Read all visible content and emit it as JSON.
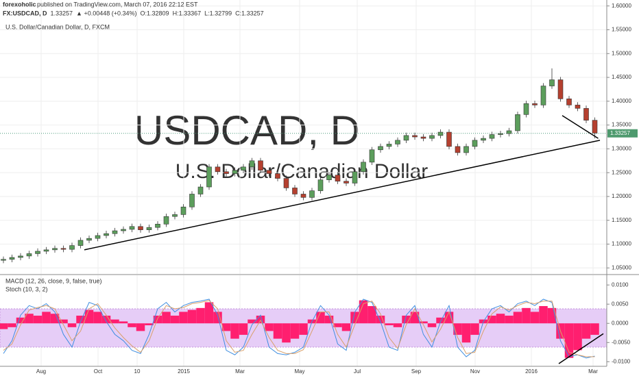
{
  "chart_data": {
    "type": "candlestick",
    "publisher": "forexoholic",
    "published": "published on TradingView.com, March 07, 2016 22:12 EST",
    "symbol_line": [
      "FX:USDCAD, D",
      "1.33257",
      "▲ +0.00448 (+0.34%)",
      "O:1.32809",
      "H:1.33367",
      "L:1.32799",
      "C:1.33257"
    ],
    "title": "U.S. Dollar/Canadian Dollar, D, FXCM",
    "watermark": [
      "USDCAD, D",
      "U.S. Dollar/Canadian Dollar"
    ],
    "up_color": "#5c9e5c",
    "down_color": "#b5402f",
    "candles": {
      "open": [
        1.066,
        1.068,
        1.072,
        1.075,
        1.08,
        1.085,
        1.088,
        1.091,
        1.089,
        1.097,
        1.108,
        1.112,
        1.118,
        1.122,
        1.128,
        1.131,
        1.137,
        1.13,
        1.135,
        1.142,
        1.158,
        1.162,
        1.178,
        1.205,
        1.22,
        1.262,
        1.252,
        1.248,
        1.255,
        1.262,
        1.275,
        1.255,
        1.248,
        1.238,
        1.218,
        1.205,
        1.198,
        1.212,
        1.235,
        1.245,
        1.232,
        1.228,
        1.252,
        1.272,
        1.298,
        1.305,
        1.31,
        1.318,
        1.328,
        1.325,
        1.322,
        1.328,
        1.335,
        1.305,
        1.292,
        1.305,
        1.318,
        1.322,
        1.33,
        1.332,
        1.338,
        1.372,
        1.395,
        1.392,
        1.432,
        1.445,
        1.405,
        1.392,
        1.385,
        1.36
      ],
      "high": [
        1.074,
        1.078,
        1.081,
        1.086,
        1.091,
        1.094,
        1.097,
        1.097,
        1.103,
        1.114,
        1.118,
        1.124,
        1.128,
        1.134,
        1.137,
        1.143,
        1.143,
        1.141,
        1.148,
        1.164,
        1.168,
        1.184,
        1.211,
        1.226,
        1.268,
        1.268,
        1.258,
        1.261,
        1.268,
        1.281,
        1.281,
        1.261,
        1.254,
        1.244,
        1.224,
        1.211,
        1.218,
        1.241,
        1.251,
        1.251,
        1.238,
        1.258,
        1.278,
        1.304,
        1.311,
        1.316,
        1.324,
        1.334,
        1.334,
        1.331,
        1.334,
        1.341,
        1.341,
        1.311,
        1.311,
        1.324,
        1.328,
        1.336,
        1.338,
        1.344,
        1.378,
        1.401,
        1.401,
        1.438,
        1.469,
        1.451,
        1.411,
        1.398,
        1.391,
        1.366
      ],
      "low": [
        1.06,
        1.062,
        1.066,
        1.069,
        1.074,
        1.079,
        1.082,
        1.083,
        1.083,
        1.091,
        1.102,
        1.106,
        1.112,
        1.116,
        1.122,
        1.125,
        1.124,
        1.124,
        1.129,
        1.136,
        1.152,
        1.156,
        1.172,
        1.199,
        1.214,
        1.246,
        1.242,
        1.242,
        1.249,
        1.256,
        1.249,
        1.242,
        1.232,
        1.212,
        1.199,
        1.192,
        1.192,
        1.206,
        1.229,
        1.226,
        1.222,
        1.222,
        1.246,
        1.266,
        1.292,
        1.299,
        1.304,
        1.312,
        1.319,
        1.316,
        1.316,
        1.322,
        1.299,
        1.286,
        1.286,
        1.299,
        1.312,
        1.316,
        1.324,
        1.326,
        1.332,
        1.366,
        1.386,
        1.386,
        1.426,
        1.399,
        1.386,
        1.379,
        1.354,
        1.322
      ],
      "close": [
        1.068,
        1.072,
        1.075,
        1.08,
        1.085,
        1.088,
        1.091,
        1.089,
        1.097,
        1.108,
        1.112,
        1.118,
        1.122,
        1.128,
        1.131,
        1.137,
        1.13,
        1.135,
        1.142,
        1.158,
        1.162,
        1.178,
        1.205,
        1.22,
        1.262,
        1.252,
        1.248,
        1.255,
        1.262,
        1.275,
        1.255,
        1.248,
        1.238,
        1.218,
        1.205,
        1.198,
        1.212,
        1.235,
        1.245,
        1.232,
        1.228,
        1.252,
        1.272,
        1.298,
        1.305,
        1.31,
        1.318,
        1.328,
        1.325,
        1.322,
        1.328,
        1.335,
        1.305,
        1.292,
        1.305,
        1.318,
        1.322,
        1.33,
        1.332,
        1.338,
        1.372,
        1.395,
        1.392,
        1.432,
        1.445,
        1.405,
        1.392,
        1.385,
        1.36,
        1.333
      ]
    },
    "last_price": {
      "value": 1.33257,
      "label": "1.33257"
    },
    "ylim": [
      1.0375,
      1.6125
    ],
    "yticks": [
      {
        "value": 1.05,
        "label": "1.05000"
      },
      {
        "value": 1.1,
        "label": "1.10000"
      },
      {
        "value": 1.15,
        "label": "1.15000"
      },
      {
        "value": 1.2,
        "label": "1.20000"
      },
      {
        "value": 1.25,
        "label": "1.25000"
      },
      {
        "value": 1.3,
        "label": "1.30000"
      },
      {
        "value": 1.35,
        "label": "1.35000"
      },
      {
        "value": 1.4,
        "label": "1.40000"
      },
      {
        "value": 1.45,
        "label": "1.45000"
      },
      {
        "value": 1.5,
        "label": "1.50000"
      },
      {
        "value": 1.55,
        "label": "1.55000"
      },
      {
        "value": 1.6,
        "label": "1.60000"
      }
    ],
    "grid": true,
    "xticks": [
      {
        "value": 4.4,
        "label": "Aug"
      },
      {
        "value": 11.04,
        "label": "Oct"
      },
      {
        "value": 15.6,
        "label": "10"
      },
      {
        "value": 21.04,
        "label": "2015"
      },
      {
        "value": 27.6,
        "label": "Mar"
      },
      {
        "value": 34.56,
        "label": "May"
      },
      {
        "value": 41.28,
        "label": "Jul"
      },
      {
        "value": 48.16,
        "label": "Sep"
      },
      {
        "value": 55.04,
        "label": "Nov"
      },
      {
        "value": 61.6,
        "label": "2016"
      },
      {
        "value": 68.8,
        "label": "Mar"
      }
    ],
    "trendlines": [
      {
        "x": [
          9.44,
          69.6
        ],
        "y": [
          1.088,
          1.318
        ]
      },
      {
        "x": [
          65.2,
          69.4
        ],
        "y": [
          1.37,
          1.322
        ]
      }
    ],
    "indicators": {
      "macd_label": "MACD (12, 26, close, 9, false, true)",
      "stoch_label": "Stoch (10, 3, 2)",
      "ylim": [
        -0.0112,
        0.012
      ],
      "yticks": [
        {
          "value": 0.01,
          "label": "0.0100"
        },
        {
          "value": 0.005,
          "label": "0.0050"
        },
        {
          "value": 0,
          "label": "0.0000"
        },
        {
          "value": -0.005,
          "label": "-0.0050"
        },
        {
          "value": -0.01,
          "label": "-0.0100"
        }
      ],
      "histogram_color": "#ff1f6f",
      "histogram": [
        -0.0015,
        -0.001,
        0.0015,
        0.0025,
        0.002,
        0.003,
        0.0025,
        0.001,
        -0.001,
        0.002,
        0.0035,
        0.003,
        0.002,
        0.001,
        0.0005,
        -0.001,
        -0.002,
        -0.0005,
        0.002,
        0.003,
        0.002,
        0.003,
        0.0035,
        0.004,
        0.0055,
        0.003,
        -0.002,
        -0.004,
        -0.003,
        0.001,
        0.002,
        -0.002,
        -0.004,
        -0.005,
        -0.004,
        -0.003,
        0.001,
        0.003,
        0.002,
        -0.001,
        -0.002,
        0.003,
        0.006,
        0.0045,
        0.002,
        -0.0005,
        -0.001,
        0.002,
        0.003,
        0.0005,
        -0.001,
        0.0015,
        0.003,
        -0.003,
        -0.005,
        -0.003,
        0.001,
        0.002,
        0.0025,
        0.002,
        0.003,
        0.004,
        0.003,
        0.0045,
        0.004,
        -0.004,
        -0.009,
        -0.007,
        -0.004,
        -0.003
      ],
      "stoch_lim": [
        0,
        100
      ],
      "stoch_band": [
        20,
        80
      ],
      "band_color": "#e6cdf7",
      "stoch": [
        {
          "color": "#3e8ee0",
          "values": [
            10,
            30,
            70,
            85,
            80,
            88,
            75,
            40,
            20,
            60,
            90,
            85,
            60,
            40,
            30,
            15,
            10,
            40,
            80,
            90,
            75,
            85,
            90,
            92,
            95,
            70,
            15,
            8,
            20,
            55,
            70,
            20,
            10,
            8,
            12,
            20,
            60,
            85,
            70,
            25,
            15,
            75,
            95,
            90,
            60,
            20,
            15,
            70,
            85,
            40,
            20,
            60,
            85,
            20,
            5,
            15,
            60,
            80,
            85,
            75,
            88,
            92,
            85,
            95,
            90,
            30,
            5,
            8,
            3,
            6
          ]
        },
        {
          "color": "#d9a06a",
          "values": [
            15,
            25,
            55,
            78,
            82,
            85,
            80,
            55,
            30,
            45,
            80,
            88,
            70,
            50,
            35,
            22,
            12,
            30,
            65,
            85,
            80,
            82,
            88,
            90,
            93,
            80,
            30,
            12,
            15,
            40,
            62,
            35,
            15,
            10,
            10,
            16,
            45,
            75,
            75,
            40,
            20,
            55,
            88,
            92,
            72,
            35,
            18,
            55,
            80,
            55,
            28,
            48,
            75,
            35,
            10,
            12,
            45,
            72,
            83,
            78,
            85,
            90,
            88,
            92,
            92,
            45,
            12,
            8,
            5,
            5
          ]
        }
      ],
      "trendline": {
        "x": [
          64.8,
          70
        ],
        "y": [
          -0.0105,
          -0.0027
        ]
      }
    }
  }
}
